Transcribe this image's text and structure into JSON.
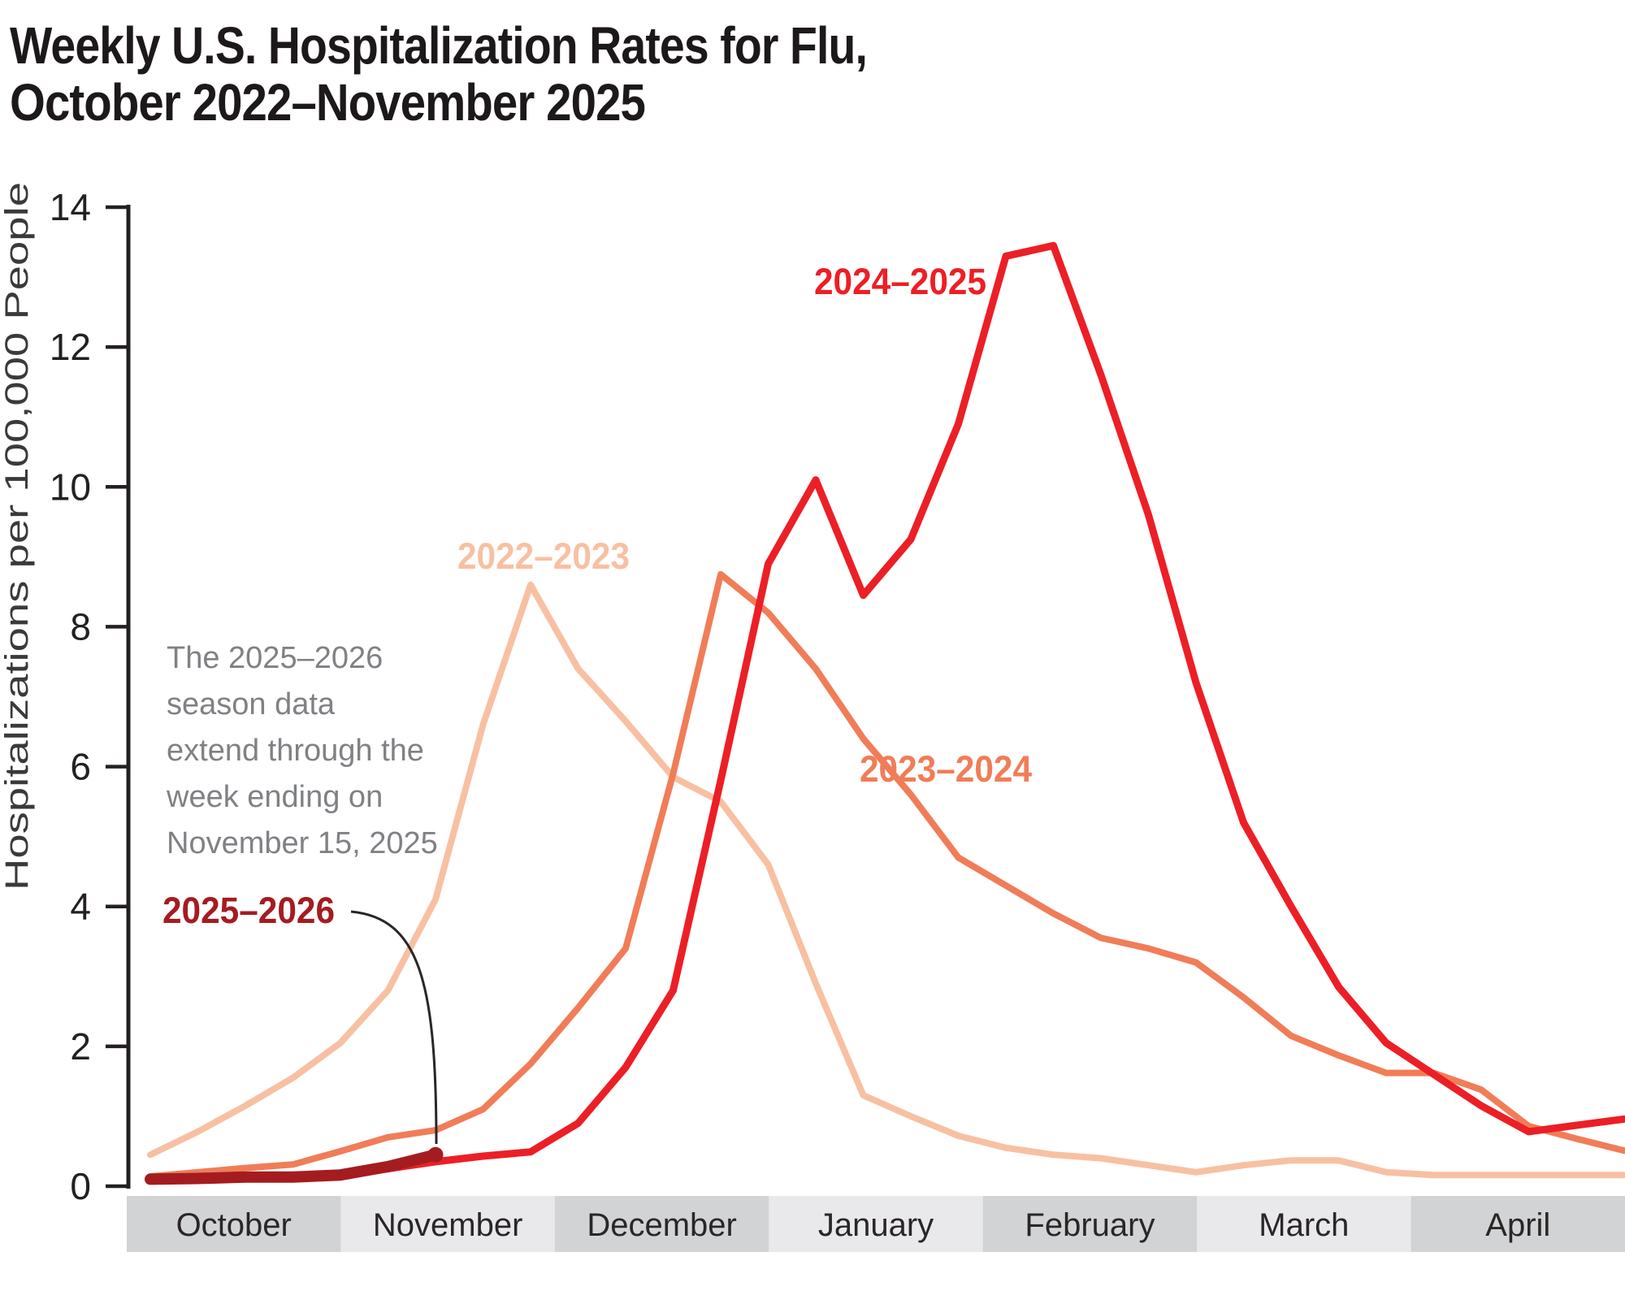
{
  "title": {
    "line1": "Weekly U.S. Hospitalization Rates for Flu,",
    "line2": "October 2022–November 2025"
  },
  "annotation": {
    "lines": [
      "The 2025–2026",
      "season data",
      "extend through the",
      "week ending on",
      "November 15, 2025"
    ],
    "text_color": "#7f8184",
    "leader_color": "#2a2627"
  },
  "colors": {
    "axis": "#242021",
    "band_dark": "#d2d3d4",
    "band_light": "#e9e9eb",
    "background": "#ffffff"
  },
  "chart_data": {
    "type": "line",
    "title": "Weekly U.S. Hospitalization Rates for Flu, October 2022–November 2025",
    "xlabel": "",
    "ylabel": "Hospitalizations per 100,000 People",
    "ylim": [
      0,
      14
    ],
    "y_ticks": [
      0,
      2,
      4,
      6,
      8,
      10,
      12,
      14
    ],
    "grid": false,
    "legend_position": "inline-labels",
    "x_axis_months": [
      "October",
      "November",
      "December",
      "January",
      "February",
      "March",
      "April"
    ],
    "x_unit": "week of flu season, early October through late April",
    "series": [
      {
        "name": "2022–2023",
        "color": "#f8c0a2",
        "peak_value": 8.6,
        "values": [
          0.45,
          0.78,
          1.15,
          1.55,
          2.05,
          2.8,
          4.1,
          6.6,
          8.6,
          7.4,
          6.65,
          5.85,
          5.5,
          4.6,
          2.9,
          1.3,
          1.0,
          0.72,
          0.55,
          0.45,
          0.4,
          0.3,
          0.2,
          0.3,
          0.37,
          0.37,
          0.2,
          0.16,
          0.16,
          0.16,
          0.16,
          0.16
        ]
      },
      {
        "name": "2023–2024",
        "color": "#f07d58",
        "peak_value": 8.75,
        "values": [
          0.14,
          0.2,
          0.26,
          0.31,
          0.5,
          0.7,
          0.8,
          1.1,
          1.75,
          2.55,
          3.4,
          5.9,
          8.75,
          8.2,
          7.4,
          6.4,
          5.6,
          4.7,
          4.3,
          3.9,
          3.55,
          3.4,
          3.2,
          2.7,
          2.15,
          1.87,
          1.62,
          1.62,
          1.38,
          0.86,
          0.68,
          0.51
        ]
      },
      {
        "name": "2024–2025",
        "color": "#ec1f26",
        "peak_value": 13.45,
        "values": [
          0.1,
          0.1,
          0.12,
          0.13,
          0.15,
          0.25,
          0.35,
          0.43,
          0.49,
          0.9,
          1.7,
          2.8,
          5.8,
          8.9,
          10.1,
          8.45,
          9.25,
          10.9,
          13.3,
          13.45,
          11.6,
          9.6,
          7.2,
          5.2,
          4.0,
          2.85,
          2.05,
          1.6,
          1.15,
          0.78,
          0.87,
          0.96
        ]
      },
      {
        "name": "2025–2026",
        "color": "#a41c20",
        "peak_value": 0.45,
        "end_marker": true,
        "values": [
          0.1,
          0.11,
          0.13,
          0.13,
          0.16,
          0.28,
          0.45
        ]
      }
    ]
  }
}
